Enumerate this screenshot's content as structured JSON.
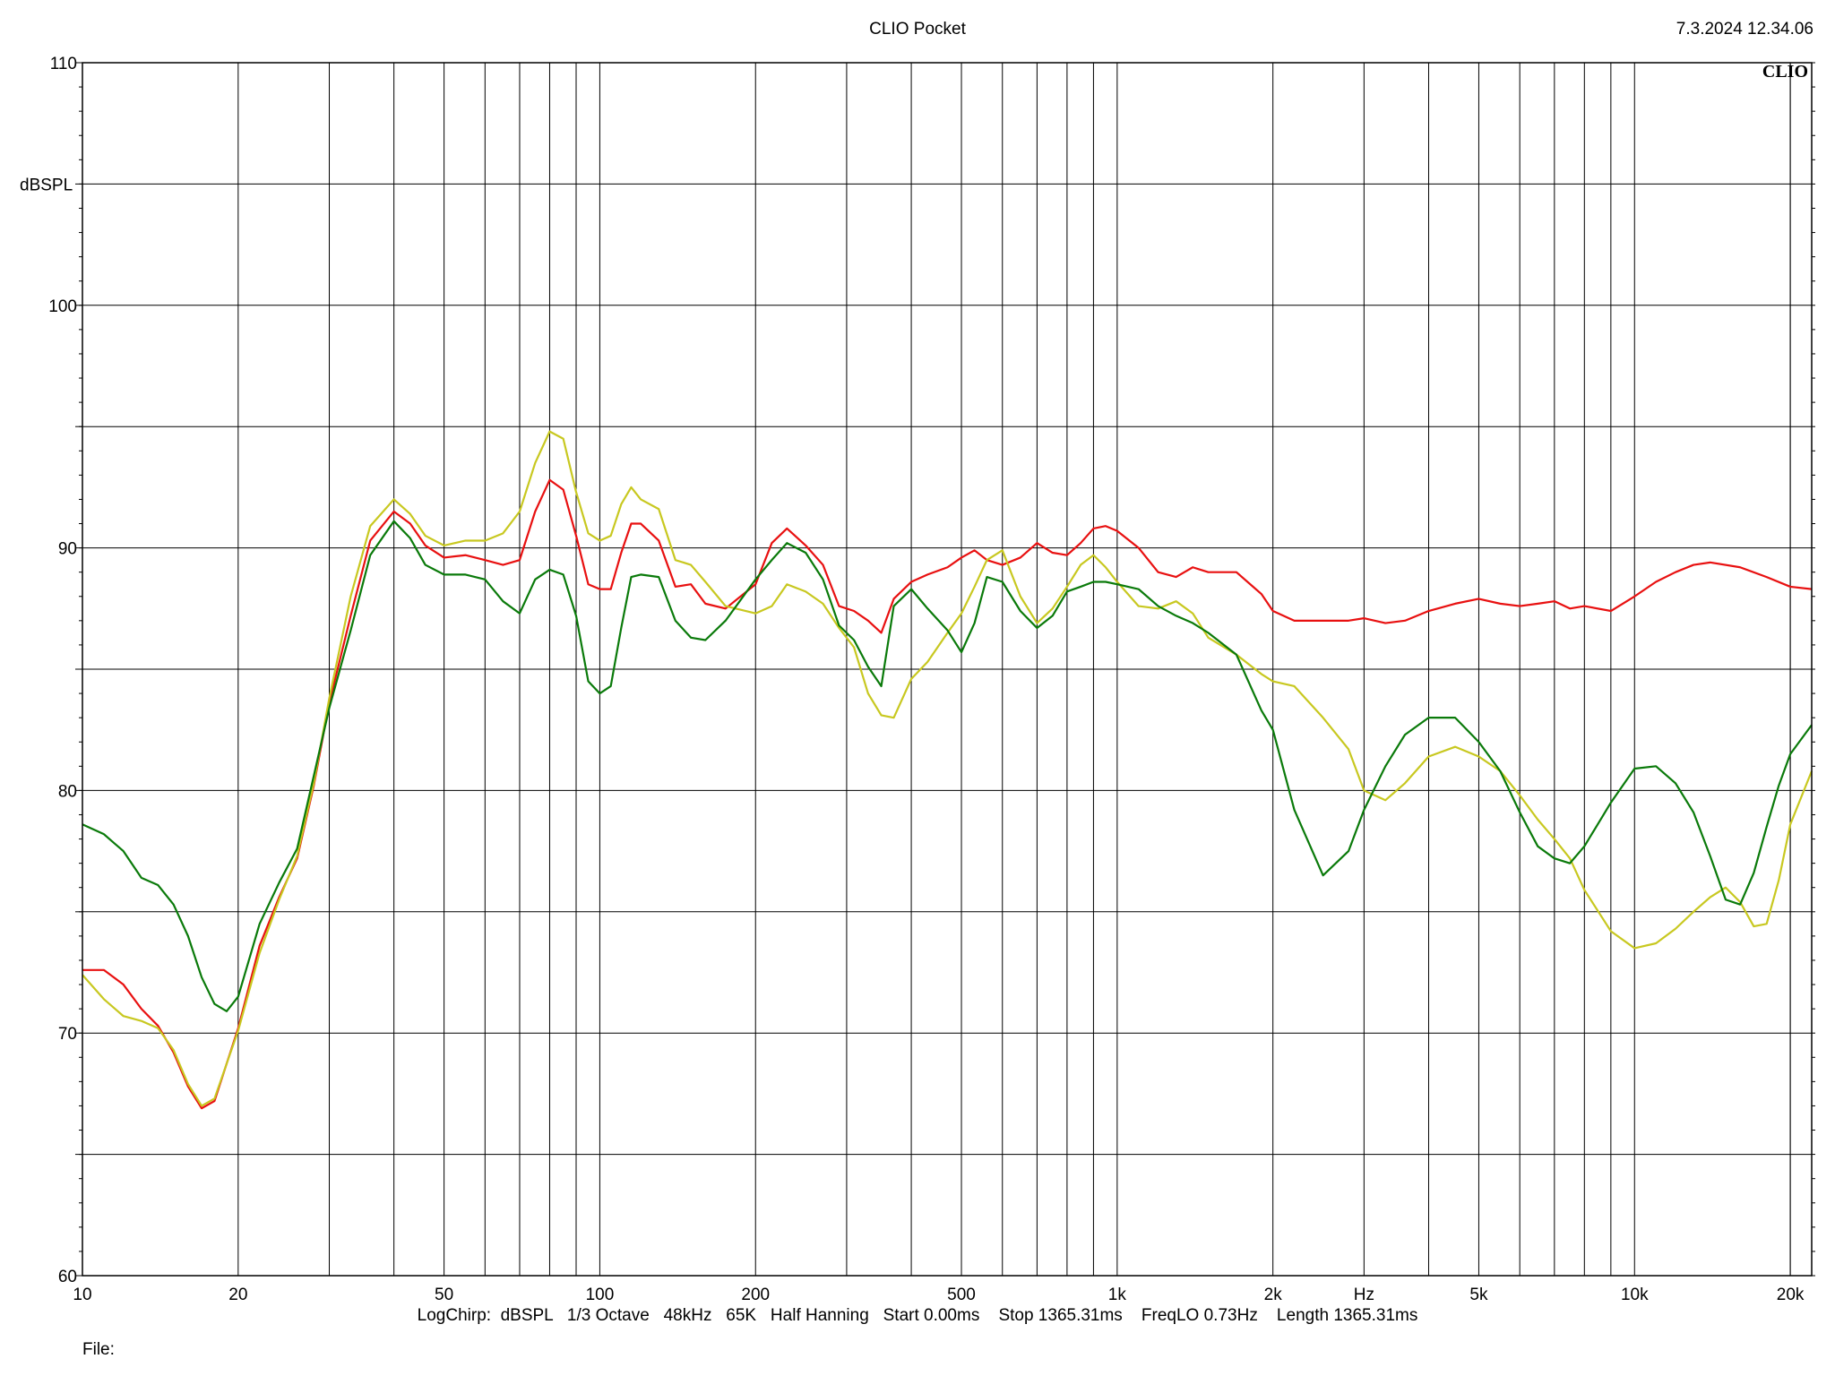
{
  "header": {
    "title": "CLIO Pocket",
    "timestamp": "7.3.2024  12.34.06",
    "logo": "CLIO"
  },
  "footer": {
    "settings": "LogChirp:  dBSPL   1/3 Octave   48kHz   65K   Half Hanning   Start 0.00ms    Stop 1365.31ms    FreqLO 0.73Hz    Length 1365.31ms",
    "file_label": "File:"
  },
  "colors": {
    "red": "#e81010",
    "yellow": "#c8c820",
    "green": "#0a7a0a",
    "grid": "#000000",
    "background": "#ffffff"
  },
  "chart_data": {
    "type": "line",
    "title": "CLIO Pocket",
    "ylabel": "dBSPL",
    "xlabel": "Hz",
    "x_scale": "log",
    "xlim": [
      10,
      22000
    ],
    "ylim": [
      60,
      110
    ],
    "y_ticks": [
      60,
      70,
      80,
      90,
      100,
      110
    ],
    "y_gridlines_every": 5,
    "x_tick_labels": [
      {
        "value": 10,
        "label": "10"
      },
      {
        "value": 20,
        "label": "20"
      },
      {
        "value": 50,
        "label": "50"
      },
      {
        "value": 100,
        "label": "100"
      },
      {
        "value": 200,
        "label": "200"
      },
      {
        "value": 500,
        "label": "500"
      },
      {
        "value": 1000,
        "label": "1k"
      },
      {
        "value": 2000,
        "label": "2k"
      },
      {
        "value": 5000,
        "label": "5k"
      },
      {
        "value": 10000,
        "label": "10k"
      },
      {
        "value": 20000,
        "label": "20k"
      }
    ],
    "grid": true,
    "series": [
      {
        "color": "#e81010",
        "points": [
          [
            10,
            72.6
          ],
          [
            11,
            72.6
          ],
          [
            12,
            72.0
          ],
          [
            13,
            71.0
          ],
          [
            14,
            70.3
          ],
          [
            15,
            69.2
          ],
          [
            16,
            67.8
          ],
          [
            17,
            66.9
          ],
          [
            18,
            67.2
          ],
          [
            20,
            70.2
          ],
          [
            22,
            73.6
          ],
          [
            24,
            75.6
          ],
          [
            26,
            77.2
          ],
          [
            28,
            80.2
          ],
          [
            30,
            83.6
          ],
          [
            33,
            87.2
          ],
          [
            36,
            90.3
          ],
          [
            40,
            91.5
          ],
          [
            43,
            91.0
          ],
          [
            46,
            90.1
          ],
          [
            50,
            89.6
          ],
          [
            55,
            89.7
          ],
          [
            60,
            89.5
          ],
          [
            65,
            89.3
          ],
          [
            70,
            89.5
          ],
          [
            75,
            91.5
          ],
          [
            80,
            92.8
          ],
          [
            85,
            92.4
          ],
          [
            90,
            90.5
          ],
          [
            95,
            88.5
          ],
          [
            100,
            88.3
          ],
          [
            105,
            88.3
          ],
          [
            110,
            89.8
          ],
          [
            115,
            91.0
          ],
          [
            120,
            91.0
          ],
          [
            130,
            90.3
          ],
          [
            140,
            88.4
          ],
          [
            150,
            88.5
          ],
          [
            160,
            87.7
          ],
          [
            175,
            87.5
          ],
          [
            200,
            88.5
          ],
          [
            215,
            90.2
          ],
          [
            230,
            90.8
          ],
          [
            250,
            90.1
          ],
          [
            270,
            89.3
          ],
          [
            290,
            87.6
          ],
          [
            310,
            87.4
          ],
          [
            330,
            87.0
          ],
          [
            350,
            86.5
          ],
          [
            370,
            87.9
          ],
          [
            400,
            88.6
          ],
          [
            430,
            88.9
          ],
          [
            470,
            89.2
          ],
          [
            500,
            89.6
          ],
          [
            530,
            89.9
          ],
          [
            560,
            89.5
          ],
          [
            600,
            89.3
          ],
          [
            650,
            89.6
          ],
          [
            700,
            90.2
          ],
          [
            750,
            89.8
          ],
          [
            800,
            89.7
          ],
          [
            850,
            90.2
          ],
          [
            900,
            90.8
          ],
          [
            950,
            90.9
          ],
          [
            1000,
            90.7
          ],
          [
            1100,
            90.0
          ],
          [
            1200,
            89.0
          ],
          [
            1300,
            88.8
          ],
          [
            1400,
            89.2
          ],
          [
            1500,
            89.0
          ],
          [
            1700,
            89.0
          ],
          [
            1900,
            88.1
          ],
          [
            2000,
            87.4
          ],
          [
            2200,
            87.0
          ],
          [
            2500,
            87.0
          ],
          [
            2800,
            87.0
          ],
          [
            3000,
            87.1
          ],
          [
            3300,
            86.9
          ],
          [
            3600,
            87.0
          ],
          [
            4000,
            87.4
          ],
          [
            4500,
            87.7
          ],
          [
            5000,
            87.9
          ],
          [
            5500,
            87.7
          ],
          [
            6000,
            87.6
          ],
          [
            6500,
            87.7
          ],
          [
            7000,
            87.8
          ],
          [
            7500,
            87.5
          ],
          [
            8000,
            87.6
          ],
          [
            9000,
            87.4
          ],
          [
            10000,
            88.0
          ],
          [
            11000,
            88.6
          ],
          [
            12000,
            89.0
          ],
          [
            13000,
            89.3
          ],
          [
            14000,
            89.4
          ],
          [
            16000,
            89.2
          ],
          [
            18000,
            88.8
          ],
          [
            20000,
            88.4
          ],
          [
            22000,
            88.3
          ]
        ]
      },
      {
        "color": "#c8c820",
        "points": [
          [
            10,
            72.4
          ],
          [
            11,
            71.4
          ],
          [
            12,
            70.7
          ],
          [
            13,
            70.5
          ],
          [
            14,
            70.2
          ],
          [
            15,
            69.3
          ],
          [
            16,
            67.9
          ],
          [
            17,
            67.0
          ],
          [
            18,
            67.3
          ],
          [
            20,
            70.1
          ],
          [
            22,
            73.3
          ],
          [
            24,
            75.5
          ],
          [
            26,
            77.3
          ],
          [
            28,
            80.3
          ],
          [
            30,
            83.8
          ],
          [
            33,
            88.0
          ],
          [
            36,
            90.9
          ],
          [
            40,
            92.0
          ],
          [
            43,
            91.4
          ],
          [
            46,
            90.5
          ],
          [
            50,
            90.1
          ],
          [
            55,
            90.3
          ],
          [
            60,
            90.3
          ],
          [
            65,
            90.6
          ],
          [
            70,
            91.5
          ],
          [
            75,
            93.5
          ],
          [
            80,
            94.8
          ],
          [
            85,
            94.5
          ],
          [
            90,
            92.3
          ],
          [
            95,
            90.6
          ],
          [
            100,
            90.3
          ],
          [
            105,
            90.5
          ],
          [
            110,
            91.8
          ],
          [
            115,
            92.5
          ],
          [
            120,
            92.0
          ],
          [
            130,
            91.6
          ],
          [
            140,
            89.5
          ],
          [
            150,
            89.3
          ],
          [
            160,
            88.6
          ],
          [
            175,
            87.6
          ],
          [
            200,
            87.3
          ],
          [
            215,
            87.6
          ],
          [
            230,
            88.5
          ],
          [
            250,
            88.2
          ],
          [
            270,
            87.7
          ],
          [
            290,
            86.7
          ],
          [
            310,
            85.9
          ],
          [
            330,
            84.0
          ],
          [
            350,
            83.1
          ],
          [
            370,
            83.0
          ],
          [
            400,
            84.6
          ],
          [
            430,
            85.3
          ],
          [
            470,
            86.5
          ],
          [
            500,
            87.3
          ],
          [
            530,
            88.4
          ],
          [
            560,
            89.5
          ],
          [
            600,
            89.9
          ],
          [
            650,
            88.0
          ],
          [
            700,
            86.9
          ],
          [
            750,
            87.5
          ],
          [
            800,
            88.4
          ],
          [
            850,
            89.3
          ],
          [
            900,
            89.7
          ],
          [
            950,
            89.2
          ],
          [
            1000,
            88.6
          ],
          [
            1100,
            87.6
          ],
          [
            1200,
            87.5
          ],
          [
            1300,
            87.8
          ],
          [
            1400,
            87.3
          ],
          [
            1500,
            86.3
          ],
          [
            1700,
            85.6
          ],
          [
            1900,
            84.8
          ],
          [
            2000,
            84.5
          ],
          [
            2200,
            84.3
          ],
          [
            2500,
            83.0
          ],
          [
            2800,
            81.7
          ],
          [
            3000,
            80.0
          ],
          [
            3300,
            79.6
          ],
          [
            3600,
            80.3
          ],
          [
            4000,
            81.4
          ],
          [
            4500,
            81.8
          ],
          [
            5000,
            81.4
          ],
          [
            5500,
            80.8
          ],
          [
            6000,
            79.8
          ],
          [
            6500,
            78.8
          ],
          [
            7000,
            78.0
          ],
          [
            7500,
            77.2
          ],
          [
            8000,
            75.9
          ],
          [
            9000,
            74.2
          ],
          [
            10000,
            73.5
          ],
          [
            11000,
            73.7
          ],
          [
            12000,
            74.3
          ],
          [
            13000,
            75.0
          ],
          [
            14000,
            75.6
          ],
          [
            15000,
            76.0
          ],
          [
            16000,
            75.4
          ],
          [
            17000,
            74.4
          ],
          [
            18000,
            74.5
          ],
          [
            19000,
            76.3
          ],
          [
            20000,
            78.6
          ],
          [
            22000,
            80.8
          ]
        ]
      },
      {
        "color": "#0a7a0a",
        "points": [
          [
            10,
            78.6
          ],
          [
            11,
            78.2
          ],
          [
            12,
            77.5
          ],
          [
            13,
            76.4
          ],
          [
            14,
            76.1
          ],
          [
            15,
            75.3
          ],
          [
            16,
            74.0
          ],
          [
            17,
            72.3
          ],
          [
            18,
            71.2
          ],
          [
            19,
            70.9
          ],
          [
            20,
            71.5
          ],
          [
            22,
            74.5
          ],
          [
            24,
            76.2
          ],
          [
            26,
            77.6
          ],
          [
            28,
            80.6
          ],
          [
            30,
            83.4
          ],
          [
            33,
            86.6
          ],
          [
            36,
            89.7
          ],
          [
            40,
            91.1
          ],
          [
            43,
            90.4
          ],
          [
            46,
            89.3
          ],
          [
            50,
            88.9
          ],
          [
            55,
            88.9
          ],
          [
            60,
            88.7
          ],
          [
            65,
            87.8
          ],
          [
            70,
            87.3
          ],
          [
            75,
            88.7
          ],
          [
            80,
            89.1
          ],
          [
            85,
            88.9
          ],
          [
            90,
            87.2
          ],
          [
            95,
            84.5
          ],
          [
            100,
            84.0
          ],
          [
            105,
            84.3
          ],
          [
            110,
            86.7
          ],
          [
            115,
            88.8
          ],
          [
            120,
            88.9
          ],
          [
            130,
            88.8
          ],
          [
            140,
            87.0
          ],
          [
            150,
            86.3
          ],
          [
            160,
            86.2
          ],
          [
            175,
            87.0
          ],
          [
            200,
            88.7
          ],
          [
            215,
            89.5
          ],
          [
            230,
            90.2
          ],
          [
            250,
            89.8
          ],
          [
            270,
            88.7
          ],
          [
            290,
            86.8
          ],
          [
            310,
            86.2
          ],
          [
            330,
            85.1
          ],
          [
            350,
            84.3
          ],
          [
            370,
            87.6
          ],
          [
            400,
            88.3
          ],
          [
            430,
            87.5
          ],
          [
            470,
            86.6
          ],
          [
            500,
            85.7
          ],
          [
            530,
            86.9
          ],
          [
            560,
            88.8
          ],
          [
            600,
            88.6
          ],
          [
            650,
            87.4
          ],
          [
            700,
            86.7
          ],
          [
            750,
            87.2
          ],
          [
            800,
            88.2
          ],
          [
            850,
            88.4
          ],
          [
            900,
            88.6
          ],
          [
            950,
            88.6
          ],
          [
            1000,
            88.5
          ],
          [
            1100,
            88.3
          ],
          [
            1200,
            87.6
          ],
          [
            1300,
            87.2
          ],
          [
            1400,
            86.9
          ],
          [
            1500,
            86.5
          ],
          [
            1700,
            85.6
          ],
          [
            1900,
            83.3
          ],
          [
            2000,
            82.5
          ],
          [
            2200,
            79.2
          ],
          [
            2500,
            76.5
          ],
          [
            2800,
            77.5
          ],
          [
            3000,
            79.2
          ],
          [
            3300,
            81.0
          ],
          [
            3600,
            82.3
          ],
          [
            4000,
            83.0
          ],
          [
            4500,
            83.0
          ],
          [
            5000,
            82.0
          ],
          [
            5500,
            80.8
          ],
          [
            6000,
            79.1
          ],
          [
            6500,
            77.7
          ],
          [
            7000,
            77.2
          ],
          [
            7500,
            77.0
          ],
          [
            8000,
            77.7
          ],
          [
            9000,
            79.5
          ],
          [
            10000,
            80.9
          ],
          [
            11000,
            81.0
          ],
          [
            12000,
            80.3
          ],
          [
            13000,
            79.1
          ],
          [
            14000,
            77.3
          ],
          [
            15000,
            75.5
          ],
          [
            16000,
            75.3
          ],
          [
            17000,
            76.6
          ],
          [
            18000,
            78.5
          ],
          [
            19000,
            80.2
          ],
          [
            20000,
            81.5
          ],
          [
            22000,
            82.7
          ]
        ]
      }
    ]
  }
}
